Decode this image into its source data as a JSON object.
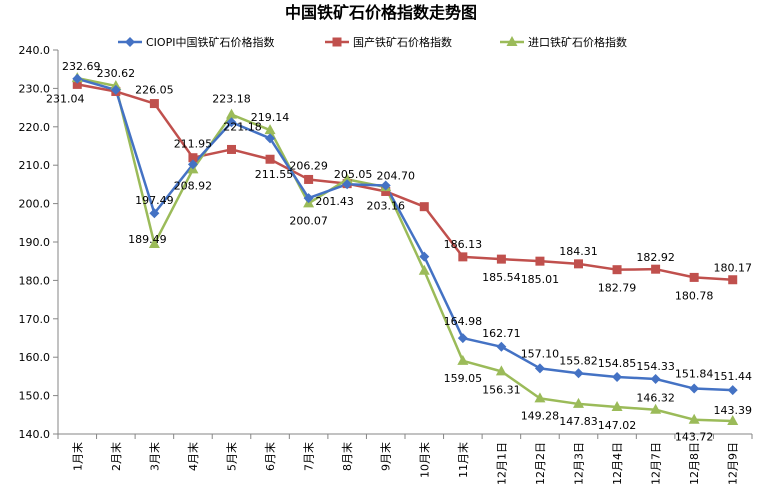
{
  "chart_data": {
    "type": "line",
    "title": "中国铁矿石价格指数走势图",
    "categories": [
      "1月末",
      "2月末",
      "3月末",
      "4月末",
      "5月末",
      "6月末",
      "7月末",
      "8月末",
      "9月末",
      "10月末",
      "11月末",
      "12月1日",
      "12月2日",
      "12月3日",
      "12月4日",
      "12月7日",
      "12月8日",
      "12月9日"
    ],
    "ylim": [
      140,
      240
    ],
    "yticks": [
      "140.0",
      "150.0",
      "160.0",
      "170.0",
      "180.0",
      "190.0",
      "200.0",
      "210.0",
      "220.0",
      "230.0",
      "240.0"
    ],
    "grid": false,
    "legend_position": "top",
    "series": [
      {
        "name": "CIOPI中国铁矿石价格指数",
        "color": "#4472c4",
        "marker": "diamond",
        "values": [
          232.5,
          229.6,
          197.49,
          210.2,
          221.18,
          217.0,
          201.43,
          205.05,
          204.7,
          186.2,
          164.98,
          162.71,
          157.1,
          155.82,
          154.85,
          154.33,
          151.84,
          151.44
        ],
        "labels": [
          null,
          null,
          "197.49",
          null,
          "221.18",
          null,
          "201.43",
          "205.05",
          "204.70",
          null,
          "164.98",
          "162.71",
          "157.10",
          "155.82",
          "154.85",
          "154.33",
          "151.84",
          "151.44"
        ]
      },
      {
        "name": "国产铁矿石价格指数",
        "color": "#c0504d",
        "marker": "square",
        "values": [
          231.04,
          229.2,
          226.05,
          211.95,
          214.1,
          211.55,
          206.29,
          205.2,
          203.16,
          199.2,
          186.13,
          185.54,
          185.01,
          184.31,
          182.79,
          182.92,
          180.78,
          180.17
        ],
        "labels": [
          "231.04",
          null,
          "226.05",
          "211.95",
          null,
          "211.55",
          "206.29",
          null,
          "203.16",
          null,
          "186.13",
          "185.54",
          "185.01",
          "184.31",
          "182.79",
          "182.92",
          "180.78",
          "180.17"
        ]
      },
      {
        "name": "进口铁矿石价格指数",
        "color": "#9bbb59",
        "marker": "triangle",
        "values": [
          232.69,
          230.62,
          189.49,
          208.92,
          223.18,
          219.14,
          200.07,
          206.3,
          204.3,
          182.5,
          159.05,
          156.31,
          149.28,
          147.83,
          147.02,
          146.32,
          143.72,
          143.39
        ],
        "labels": [
          "232.69",
          "230.62",
          "189.49",
          "208.92",
          "223.18",
          "219.14",
          "200.07",
          null,
          null,
          null,
          "159.05",
          "156.31",
          "149.28",
          "147.83",
          "147.02",
          "146.32",
          "143.72",
          "143.39"
        ]
      }
    ]
  }
}
